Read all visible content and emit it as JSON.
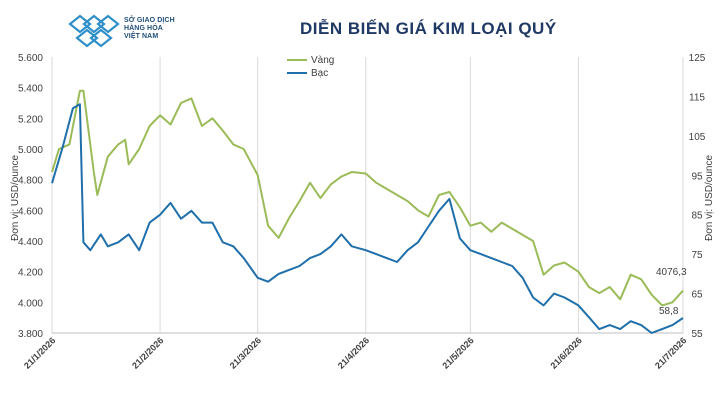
{
  "header": {
    "logo_lines": [
      "SỞ GIAO DỊCH",
      "HÀNG HÓA",
      "VIỆT NAM"
    ],
    "logo_icon": "sgd-logo-icon"
  },
  "chart_data": {
    "type": "line",
    "title": "DIỄN BIẾN GIÁ KIM LOẠI QUÝ",
    "ylabel_left": "Đơn vị: USD/ounce",
    "ylabel_right": "Đơn vị: USD/ounce",
    "ylim_left": [
      3800,
      5600
    ],
    "ylim_right": [
      55,
      125
    ],
    "yticks_left": [
      "3.800",
      "4.000",
      "4.200",
      "4.400",
      "4.600",
      "4.800",
      "5.000",
      "5.200",
      "5.400",
      "5.600"
    ],
    "yticks_right": [
      "55",
      "65",
      "75",
      "85",
      "95",
      "105",
      "115",
      "125"
    ],
    "x_ticks": [
      "21/1/2026",
      "21/2/2026",
      "21/3/2026",
      "21/4/2026",
      "21/5/2026",
      "21/6/2026",
      "21/7/2026"
    ],
    "grid": true,
    "legend_position": "top-left",
    "series": [
      {
        "name": "Vàng",
        "axis": "left",
        "color": "#9bbb59",
        "x": [
          "2026-01-21",
          "2026-01-23",
          "2026-01-26",
          "2026-01-29",
          "2026-01-30",
          "2026-02-02",
          "2026-02-03",
          "2026-02-06",
          "2026-02-09",
          "2026-02-11",
          "2026-02-12",
          "2026-02-15",
          "2026-02-18",
          "2026-02-21",
          "2026-02-24",
          "2026-02-27",
          "2026-03-02",
          "2026-03-05",
          "2026-03-08",
          "2026-03-11",
          "2026-03-14",
          "2026-03-17",
          "2026-03-21",
          "2026-03-24",
          "2026-03-27",
          "2026-03-30",
          "2026-04-02",
          "2026-04-05",
          "2026-04-08",
          "2026-04-11",
          "2026-04-14",
          "2026-04-17",
          "2026-04-21",
          "2026-04-24",
          "2026-04-27",
          "2026-04-30",
          "2026-05-03",
          "2026-05-06",
          "2026-05-09",
          "2026-05-12",
          "2026-05-15",
          "2026-05-18",
          "2026-05-21",
          "2026-05-24",
          "2026-05-27",
          "2026-05-30",
          "2026-06-02",
          "2026-06-05",
          "2026-06-08",
          "2026-06-11",
          "2026-06-14",
          "2026-06-17",
          "2026-06-21",
          "2026-06-24",
          "2026-06-27",
          "2026-06-30",
          "2026-07-03",
          "2026-07-06",
          "2026-07-09",
          "2026-07-12",
          "2026-07-15",
          "2026-07-18",
          "2026-07-21"
        ],
        "values": [
          4850,
          5000,
          5030,
          5380,
          5380,
          4850,
          4700,
          4950,
          5030,
          5060,
          4900,
          5000,
          5150,
          5220,
          5160,
          5300,
          5330,
          5150,
          5200,
          5120,
          5030,
          5000,
          4830,
          4500,
          4420,
          4550,
          4660,
          4780,
          4680,
          4770,
          4820,
          4850,
          4840,
          4780,
          4740,
          4700,
          4660,
          4600,
          4560,
          4700,
          4720,
          4620,
          4500,
          4520,
          4460,
          4520,
          4480,
          4440,
          4400,
          4180,
          4240,
          4260,
          4200,
          4100,
          4060,
          4100,
          4020,
          4180,
          4150,
          4050,
          3980,
          4000,
          4076.3
        ]
      },
      {
        "name": "Bạc",
        "axis": "right",
        "color": "#1f6fab",
        "x": [
          "2026-01-21",
          "2026-01-24",
          "2026-01-27",
          "2026-01-29",
          "2026-01-30",
          "2026-02-01",
          "2026-02-04",
          "2026-02-06",
          "2026-02-09",
          "2026-02-12",
          "2026-02-15",
          "2026-02-18",
          "2026-02-21",
          "2026-02-24",
          "2026-02-27",
          "2026-03-02",
          "2026-03-05",
          "2026-03-08",
          "2026-03-11",
          "2026-03-14",
          "2026-03-17",
          "2026-03-21",
          "2026-03-24",
          "2026-03-27",
          "2026-03-30",
          "2026-04-02",
          "2026-04-05",
          "2026-04-08",
          "2026-04-11",
          "2026-04-14",
          "2026-04-17",
          "2026-04-21",
          "2026-04-24",
          "2026-04-27",
          "2026-04-30",
          "2026-05-03",
          "2026-05-06",
          "2026-05-09",
          "2026-05-12",
          "2026-05-15",
          "2026-05-18",
          "2026-05-21",
          "2026-05-24",
          "2026-05-27",
          "2026-05-30",
          "2026-06-02",
          "2026-06-05",
          "2026-06-08",
          "2026-06-11",
          "2026-06-14",
          "2026-06-17",
          "2026-06-21",
          "2026-06-24",
          "2026-06-27",
          "2026-06-30",
          "2026-07-03",
          "2026-07-06",
          "2026-07-09",
          "2026-07-12",
          "2026-07-15",
          "2026-07-18",
          "2026-07-21"
        ],
        "values": [
          93,
          102,
          112,
          113,
          78,
          76,
          80,
          77,
          78,
          80,
          76,
          83,
          85,
          88,
          84,
          86,
          83,
          83,
          78,
          77,
          74,
          69,
          68,
          70,
          71,
          72,
          74,
          75,
          77,
          80,
          77,
          76,
          75,
          74,
          73,
          76,
          78,
          82,
          86,
          89,
          79,
          76,
          75,
          74,
          73,
          72,
          69,
          64,
          62,
          65,
          64,
          62,
          59,
          56,
          57,
          56,
          58,
          57,
          55,
          56,
          57,
          58.8
        ]
      }
    ],
    "annotations": [
      "4076,3",
      "58,8"
    ]
  }
}
